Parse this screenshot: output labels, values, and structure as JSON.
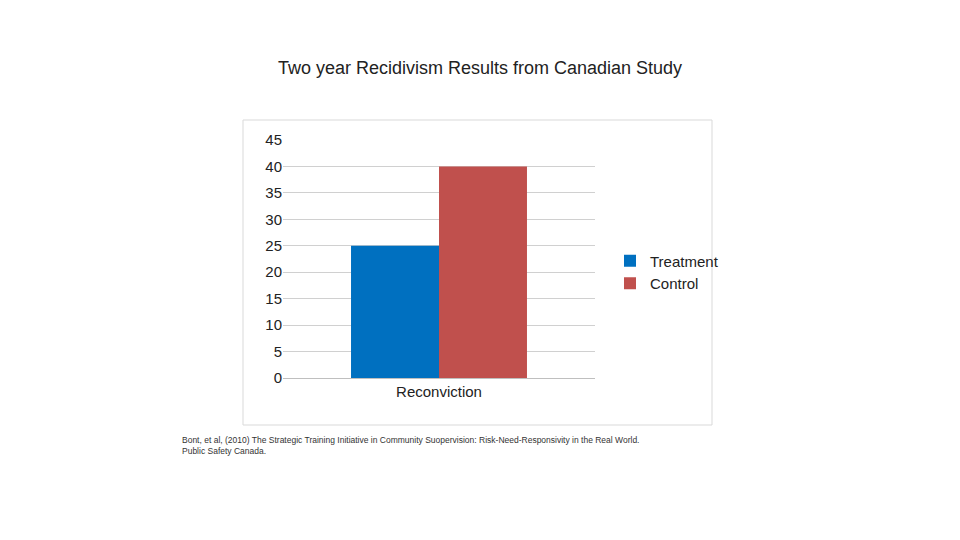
{
  "chart_data": {
    "type": "bar",
    "title": "Two year Recidivism Results from Canadian Study",
    "categories": [
      "Reconviction"
    ],
    "series": [
      {
        "name": "Treatment",
        "color": "#0070c0",
        "values": [
          25
        ]
      },
      {
        "name": "Control",
        "color": "#c0504d",
        "values": [
          40
        ]
      }
    ],
    "ylim": [
      0,
      45
    ],
    "yticks": [
      0,
      5,
      10,
      15,
      20,
      25,
      30,
      35,
      40,
      45
    ],
    "grid": true,
    "legend": "right",
    "annotations": [
      "Bont, et al, (2010) The Strategic Training Initiative in Community Suopervision: Risk-Need-Responsivity in the Real World.",
      "Public Safety Canada."
    ]
  }
}
